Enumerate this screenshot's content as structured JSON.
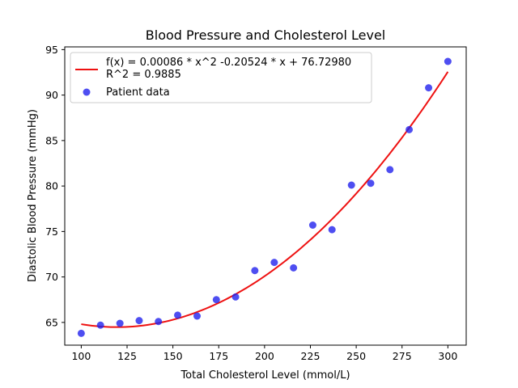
{
  "chart_data": {
    "type": "scatter",
    "title": "Blood Pressure and Cholesterol Level",
    "xlabel": "Total Cholesterol Level (mmol/L)",
    "ylabel": "Diastolic Blood Pressure (mmHg)",
    "xlim": [
      91,
      310
    ],
    "ylim": [
      62.5,
      95.3
    ],
    "xticks": [
      100,
      125,
      150,
      175,
      200,
      225,
      250,
      275,
      300
    ],
    "yticks": [
      65,
      70,
      75,
      80,
      85,
      90,
      95
    ],
    "grid": false,
    "legend_position": "upper-left",
    "colors": {
      "fit": "#ee1111",
      "points": "#2222ee"
    },
    "fit": {
      "name_line1": "f(x) = 0.00086 * x^2 -0.20524 * x + 76.72980",
      "name_line2": "R^2 = 0.9885",
      "coefficients": {
        "a": 0.00086,
        "b": -0.20524,
        "c": 76.7298
      },
      "x_range": [
        100,
        300
      ]
    },
    "series": [
      {
        "name": "Patient data",
        "x": [
          100,
          110.5,
          121.1,
          131.6,
          142.1,
          152.6,
          163.2,
          173.7,
          184.2,
          194.7,
          205.3,
          215.8,
          226.3,
          236.8,
          247.4,
          257.9,
          268.4,
          278.9,
          289.5,
          300
        ],
        "y": [
          63.8,
          64.7,
          64.9,
          65.2,
          65.1,
          65.8,
          65.7,
          67.5,
          67.8,
          70.7,
          71.6,
          71.0,
          75.7,
          75.2,
          80.1,
          80.3,
          81.8,
          86.2,
          90.8,
          93.7
        ]
      }
    ]
  }
}
